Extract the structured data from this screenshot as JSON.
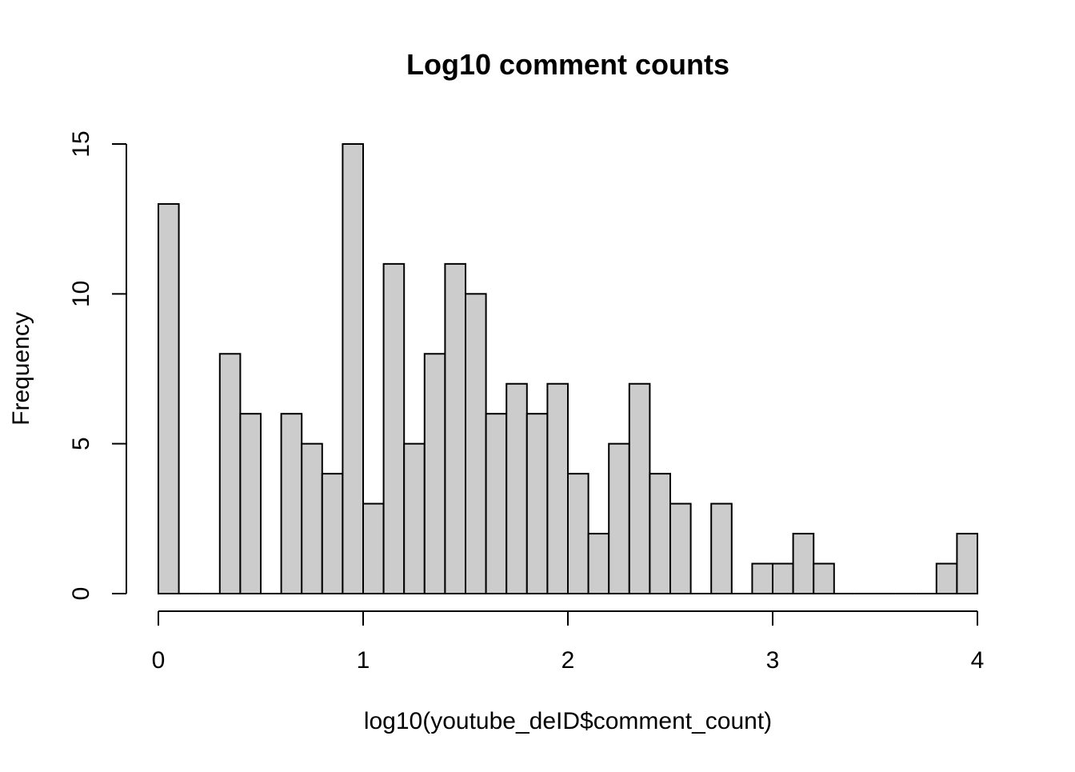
{
  "chart_data": {
    "type": "bar",
    "title": "Log10 comment counts",
    "xlabel": "log10(youtube_deID$comment_count)",
    "ylabel": "Frequency",
    "bin_width": 0.1,
    "bin_starts": [
      0.0,
      0.1,
      0.2,
      0.3,
      0.4,
      0.5,
      0.6,
      0.7,
      0.8,
      0.9,
      1.0,
      1.1,
      1.2,
      1.3,
      1.4,
      1.5,
      1.6,
      1.7,
      1.8,
      1.9,
      2.0,
      2.1,
      2.2,
      2.3,
      2.4,
      2.5,
      2.6,
      2.7,
      2.8,
      2.9,
      3.0,
      3.1,
      3.2,
      3.3,
      3.4,
      3.5,
      3.6,
      3.7,
      3.8,
      3.9
    ],
    "values": [
      13,
      0,
      0,
      8,
      6,
      0,
      6,
      5,
      4,
      15,
      3,
      11,
      5,
      8,
      11,
      10,
      6,
      7,
      6,
      7,
      4,
      2,
      5,
      7,
      4,
      3,
      0,
      3,
      0,
      1,
      1,
      2,
      1,
      0,
      0,
      0,
      0,
      0,
      1,
      2
    ],
    "xlim": [
      0,
      4
    ],
    "ylim": [
      0,
      15
    ],
    "x_ticks": [
      0,
      1,
      2,
      3,
      4
    ],
    "x_tick_labels": [
      "0",
      "1",
      "2",
      "3",
      "4"
    ],
    "y_ticks": [
      0,
      5,
      10,
      15
    ],
    "y_tick_labels": [
      "0",
      "5",
      "10",
      "15"
    ],
    "bar_fill": "#cccccc",
    "bar_stroke": "#000000",
    "grid": false
  }
}
